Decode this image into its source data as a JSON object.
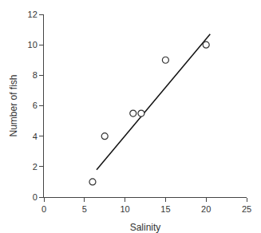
{
  "chart_data": {
    "type": "scatter",
    "xlabel": "Salinity",
    "ylabel": "Number of fish",
    "xlim": [
      0,
      25
    ],
    "ylim": [
      0,
      12
    ],
    "xticks": [
      0,
      5,
      10,
      15,
      20,
      25
    ],
    "yticks": [
      0,
      2,
      4,
      6,
      8,
      10,
      12
    ],
    "grid": false,
    "series": [
      {
        "type": "line",
        "x": [
          6.5,
          20.5
        ],
        "values": [
          1.8,
          10.7
        ],
        "color": "#111111",
        "line_style": "solid"
      },
      {
        "type": "scatter",
        "x": [
          6,
          7.5,
          11,
          12,
          15,
          20
        ],
        "values": [
          1,
          4,
          5.5,
          5.5,
          9,
          10
        ],
        "color": "#333333",
        "marker": "circle-open"
      }
    ]
  }
}
